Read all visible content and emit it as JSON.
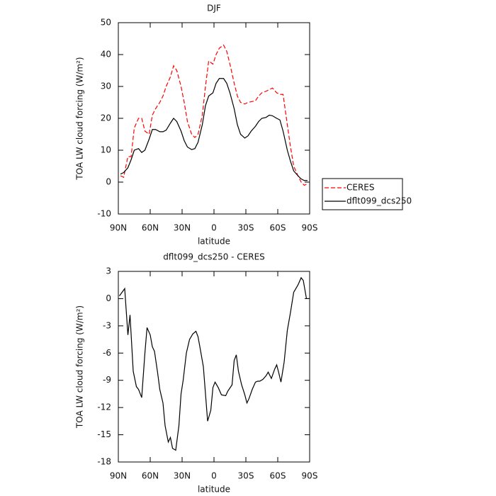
{
  "chart_data": [
    {
      "type": "line",
      "title": "DJF",
      "xlabel": "latitude",
      "ylabel": "TOA LW cloud forcing (W/m²)",
      "x": [
        88,
        85,
        81,
        78,
        75,
        71,
        68,
        65,
        61,
        58,
        55,
        51,
        48,
        45,
        41,
        38,
        35,
        31,
        28,
        25,
        21,
        18,
        15,
        11,
        8,
        5,
        1,
        -2,
        -5,
        -9,
        -12,
        -15,
        -19,
        -22,
        -25,
        -29,
        -32,
        -35,
        -39,
        -42,
        -45,
        -49,
        -52,
        -55,
        -59,
        -62,
        -65,
        -69,
        -72,
        -75,
        -79,
        -82,
        -85,
        -88
      ],
      "series": [
        {
          "name": "CERES",
          "color": "#ff0000",
          "linestyle": "dashed",
          "values": [
            2,
            1.5,
            8,
            8,
            17,
            20,
            20,
            16,
            15,
            21,
            23,
            25,
            27,
            30,
            33,
            36.5,
            35,
            30,
            25,
            19,
            15,
            14,
            15,
            21,
            30,
            38,
            37,
            40,
            42,
            43,
            41,
            37,
            31,
            27,
            25,
            24.5,
            25,
            25.2,
            25.5,
            27,
            28,
            28.5,
            29,
            29.5,
            28,
            27.5,
            27.5,
            18,
            11,
            5,
            2,
            0,
            -1,
            -0.5
          ]
        },
        {
          "name": "dflt099_dcs250",
          "color": "#000000",
          "linestyle": "solid",
          "values": [
            2.5,
            3,
            4.5,
            7,
            10,
            10.5,
            9.3,
            10,
            13.5,
            16.5,
            16.5,
            15.8,
            15.8,
            16.3,
            18.5,
            20,
            19,
            16,
            13,
            11,
            10.2,
            10.5,
            12.5,
            18,
            24,
            27,
            28,
            31,
            32.5,
            32.5,
            31,
            28,
            23,
            18,
            15,
            13.8,
            14.5,
            16,
            17.5,
            19,
            20,
            20.3,
            21,
            20.8,
            20,
            19.5,
            16,
            10,
            6.5,
            3.5,
            2,
            1,
            0.5,
            0.5
          ]
        }
      ],
      "xlim": [
        90,
        -90
      ],
      "xticks": [
        {
          "value": 90,
          "label": "90N"
        },
        {
          "value": 60,
          "label": "60N"
        },
        {
          "value": 30,
          "label": "30N"
        },
        0,
        {
          "value": -30,
          "label": "30S"
        },
        {
          "value": -60,
          "label": "60S"
        },
        {
          "value": -90,
          "label": "90S"
        }
      ],
      "ylim": [
        -10,
        50
      ],
      "yticks": [
        -10,
        0,
        10,
        20,
        30,
        40,
        50
      ],
      "legend": "right"
    },
    {
      "type": "line",
      "title": "dflt099_dcs250 - CERES",
      "xlabel": "latitude",
      "ylabel": "TOA LW cloud forcing (W/m²)",
      "x": [
        89,
        84,
        81,
        79,
        76,
        73,
        71,
        68,
        65,
        63,
        60,
        58,
        56,
        53,
        51,
        48,
        46,
        43,
        41,
        39,
        36,
        33,
        31,
        29,
        26,
        23,
        20,
        17,
        15,
        13,
        10,
        8,
        6,
        3,
        1,
        -1,
        -4,
        -7,
        -11,
        -13,
        -17,
        -19,
        -21,
        -23,
        -26,
        -29,
        -31,
        -33,
        -36,
        -39,
        -41,
        -43,
        -46,
        -49,
        -51,
        -54,
        -57,
        -59,
        -61,
        -63,
        -66,
        -69,
        -72,
        -75,
        -79,
        -82,
        -84,
        -87,
        -90
      ],
      "series": [
        {
          "name": "dflt099_dcs250 - CERES",
          "color": "#000000",
          "linestyle": "solid",
          "values": [
            0.3,
            1.1,
            -4,
            -1.8,
            -8,
            -9.7,
            -10,
            -10.9,
            -6,
            -3.2,
            -4,
            -5.3,
            -5.8,
            -8.2,
            -10,
            -11.5,
            -14,
            -15.8,
            -15.3,
            -16.5,
            -16.7,
            -14,
            -10.5,
            -9,
            -6,
            -4.5,
            -3.9,
            -3.6,
            -4.2,
            -5.5,
            -7.5,
            -10.5,
            -13.5,
            -12.3,
            -9.8,
            -9.2,
            -9.8,
            -10.6,
            -10.7,
            -10.2,
            -9.5,
            -6.8,
            -6.2,
            -8,
            -9.5,
            -10.6,
            -11.5,
            -11,
            -10,
            -9.2,
            -9.1,
            -9.1,
            -8.9,
            -8.5,
            -8.1,
            -8.8,
            -7.8,
            -7.3,
            -8.2,
            -9.2,
            -7,
            -3.5,
            -1.5,
            0.7,
            1.5,
            2.3,
            2,
            0,
            0
          ]
        }
      ],
      "xlim": [
        90,
        -90
      ],
      "xticks": [
        {
          "value": 90,
          "label": "90N"
        },
        {
          "value": 60,
          "label": "60N"
        },
        {
          "value": 30,
          "label": "30N"
        },
        0,
        {
          "value": -30,
          "label": "30S"
        },
        {
          "value": -60,
          "label": "60S"
        },
        {
          "value": -90,
          "label": "90S"
        }
      ],
      "ylim": [
        -18,
        3
      ],
      "yticks": [
        -18,
        -15,
        -12,
        -9,
        -6,
        -3,
        0,
        3
      ]
    }
  ]
}
